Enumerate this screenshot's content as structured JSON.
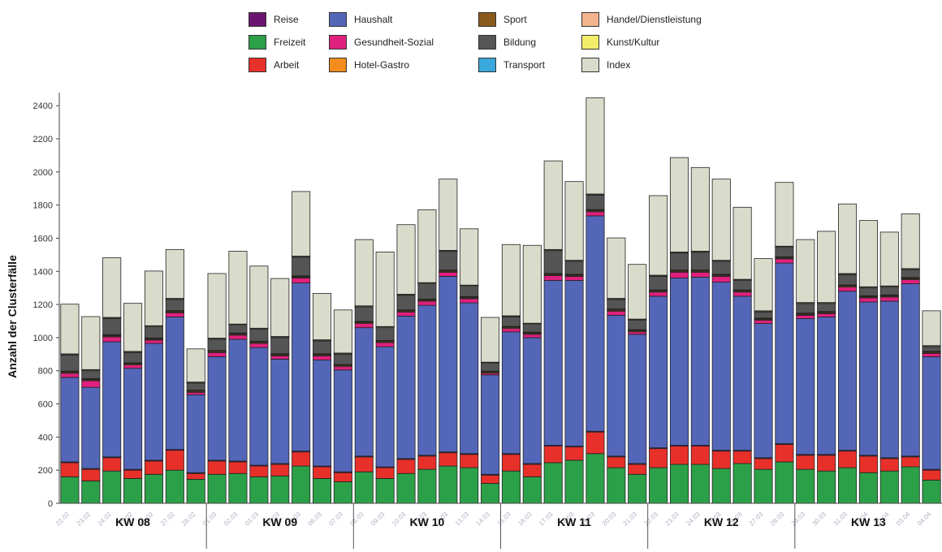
{
  "chart_data": {
    "type": "bar",
    "stacked": true,
    "title": "",
    "xlabel": "",
    "ylabel": "Anzahl der Clusterfälle",
    "ylim": [
      0,
      2450
    ],
    "yticks": [
      0,
      200,
      400,
      600,
      800,
      1000,
      1200,
      1400,
      1600,
      1800,
      2000,
      2200,
      2400
    ],
    "grid": false,
    "legend_position": "top",
    "categories": [
      "22.02",
      "23.02",
      "24.02",
      "25.02",
      "26.02",
      "27.02",
      "28.02",
      "01.03",
      "02.03",
      "03.03",
      "04.03",
      "05.03",
      "06.03",
      "07.03",
      "08.03",
      "09.03",
      "10.03",
      "11.03",
      "12.03",
      "13.03",
      "14.03",
      "15.03",
      "16.03",
      "17.03",
      "18.03",
      "19.03",
      "20.03",
      "21.03",
      "22.03",
      "23.03",
      "24.03",
      "25.03",
      "26.03",
      "27.03",
      "28.03",
      "29.03",
      "30.03",
      "31.03",
      "01.04",
      "02.04",
      "03.04",
      "04.04"
    ],
    "weeks": [
      {
        "label": "KW 08",
        "start": 0,
        "end": 6
      },
      {
        "label": "KW 09",
        "start": 7,
        "end": 13
      },
      {
        "label": "KW 10",
        "start": 14,
        "end": 20
      },
      {
        "label": "KW 11",
        "start": 21,
        "end": 27
      },
      {
        "label": "KW 12",
        "start": 28,
        "end": 34
      },
      {
        "label": "KW 13",
        "start": 35,
        "end": 41
      }
    ],
    "series": [
      {
        "name": "Freizeit",
        "color": "#2ca048",
        "values": [
          160,
          135,
          195,
          150,
          175,
          200,
          145,
          175,
          180,
          160,
          165,
          225,
          150,
          130,
          190,
          150,
          180,
          205,
          225,
          215,
          120,
          195,
          160,
          245,
          260,
          300,
          215,
          175,
          215,
          235,
          235,
          210,
          240,
          205,
          250,
          205,
          195,
          215,
          185,
          195,
          220,
          140
        ]
      },
      {
        "name": "Arbeit",
        "color": "#e8302a",
        "values": [
          85,
          70,
          80,
          50,
          80,
          120,
          35,
          80,
          70,
          65,
          70,
          85,
          70,
          55,
          90,
          65,
          85,
          80,
          80,
          80,
          50,
          100,
          75,
          100,
          80,
          130,
          65,
          60,
          115,
          110,
          110,
          105,
          75,
          65,
          105,
          85,
          95,
          100,
          100,
          75,
          60,
          60
        ]
      },
      {
        "name": "Reise",
        "color": "#6a1670",
        "values": [
          5,
          5,
          5,
          5,
          5,
          5,
          5,
          5,
          5,
          5,
          5,
          5,
          5,
          5,
          5,
          5,
          5,
          5,
          5,
          5,
          5,
          5,
          5,
          5,
          5,
          5,
          5,
          5,
          5,
          5,
          5,
          5,
          5,
          5,
          5,
          5,
          5,
          5,
          5,
          5,
          5,
          5
        ]
      },
      {
        "name": "Haushalt",
        "color": "#5466b8",
        "values": [
          510,
          490,
          695,
          610,
          705,
          800,
          470,
          625,
          735,
          710,
          630,
          1015,
          640,
          615,
          775,
          725,
          860,
          905,
          1060,
          910,
          600,
          735,
          760,
          995,
          1000,
          1300,
          850,
          780,
          915,
          1010,
          1015,
          1015,
          930,
          810,
          1090,
          820,
          830,
          960,
          925,
          945,
          1040,
          680
        ]
      },
      {
        "name": "Gesundheit-Sozial",
        "color": "#e0207e",
        "values": [
          25,
          40,
          30,
          20,
          20,
          25,
          15,
          25,
          25,
          25,
          20,
          30,
          25,
          20,
          25,
          25,
          25,
          25,
          25,
          25,
          10,
          20,
          20,
          30,
          25,
          25,
          25,
          15,
          25,
          35,
          30,
          35,
          25,
          20,
          25,
          20,
          20,
          25,
          25,
          25,
          25,
          20
        ]
      },
      {
        "name": "Hotel-Gastro",
        "color": "#f28c1c",
        "values": [
          5,
          5,
          5,
          5,
          5,
          5,
          5,
          5,
          5,
          5,
          5,
          5,
          5,
          5,
          5,
          5,
          5,
          5,
          5,
          5,
          5,
          5,
          5,
          5,
          5,
          5,
          5,
          5,
          5,
          5,
          5,
          5,
          5,
          5,
          5,
          5,
          5,
          5,
          5,
          5,
          5,
          5
        ]
      },
      {
        "name": "Sport",
        "color": "#8a5a1c",
        "values": [
          5,
          5,
          5,
          5,
          5,
          5,
          5,
          5,
          5,
          5,
          5,
          5,
          5,
          5,
          5,
          5,
          5,
          5,
          5,
          5,
          5,
          5,
          5,
          5,
          5,
          5,
          5,
          5,
          5,
          5,
          5,
          5,
          5,
          5,
          5,
          5,
          5,
          5,
          5,
          5,
          5,
          5
        ]
      },
      {
        "name": "Transport",
        "color": "#3aa8dc",
        "values": [
          3,
          3,
          3,
          3,
          3,
          3,
          3,
          3,
          3,
          3,
          3,
          3,
          3,
          3,
          3,
          3,
          3,
          3,
          3,
          3,
          3,
          3,
          3,
          3,
          3,
          3,
          3,
          3,
          3,
          3,
          3,
          3,
          3,
          3,
          3,
          3,
          3,
          3,
          3,
          3,
          3,
          3
        ]
      },
      {
        "name": "Bildung",
        "color": "#555555",
        "values": [
          97,
          47,
          97,
          62,
          67,
          67,
          42,
          67,
          47,
          72,
          97,
          112,
          77,
          62,
          87,
          77,
          87,
          92,
          112,
          62,
          47,
          57,
          47,
          137,
          77,
          87,
          57,
          57,
          82,
          102,
          107,
          77,
          57,
          37,
          57,
          57,
          47,
          62,
          47,
          47,
          47,
          27
        ]
      },
      {
        "name": "Handel/Dienstleistung",
        "color": "#f2b48c",
        "values": [
          5,
          5,
          5,
          5,
          5,
          5,
          5,
          5,
          5,
          5,
          5,
          5,
          5,
          5,
          5,
          5,
          5,
          5,
          5,
          5,
          5,
          5,
          5,
          5,
          5,
          5,
          5,
          5,
          5,
          5,
          5,
          5,
          5,
          5,
          5,
          5,
          5,
          5,
          5,
          5,
          5,
          5
        ]
      },
      {
        "name": "Kunst/Kultur",
        "color": "#f2ee6a",
        "values": [
          2,
          2,
          2,
          2,
          2,
          2,
          2,
          2,
          2,
          2,
          2,
          2,
          2,
          2,
          2,
          2,
          2,
          2,
          2,
          2,
          2,
          2,
          2,
          2,
          2,
          2,
          2,
          2,
          2,
          2,
          2,
          2,
          2,
          2,
          2,
          2,
          2,
          2,
          2,
          2,
          2,
          2
        ]
      },
      {
        "name": "Index",
        "color": "#d9dccb",
        "values": [
          300,
          320,
          360,
          290,
          330,
          295,
          200,
          390,
          440,
          375,
          350,
          390,
          280,
          260,
          400,
          450,
          420,
          440,
          430,
          340,
          270,
          430,
          470,
          535,
          475,
          580,
          365,
          330,
          480,
          570,
          505,
          490,
          435,
          315,
          385,
          380,
          430,
          420,
          400,
          325,
          330,
          210
        ]
      }
    ]
  }
}
